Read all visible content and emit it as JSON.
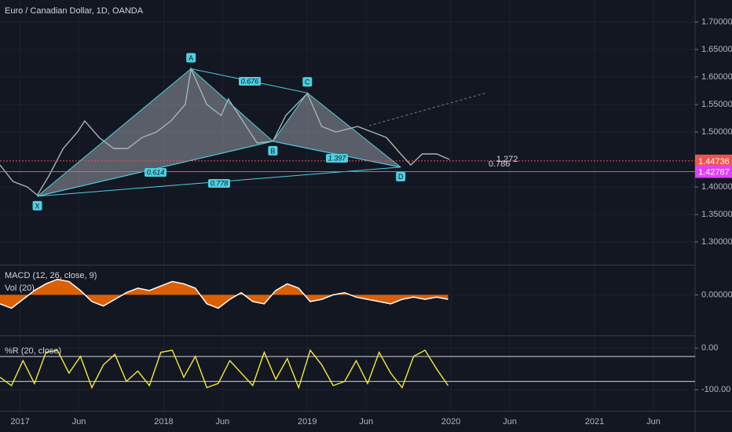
{
  "chart_data": [
    {
      "type": "line",
      "title": "Euro / Canadian Dollar, 1D, OANDA",
      "xlim": [
        2016.86,
        2021.7
      ],
      "ylim": [
        1.2586,
        1.74
      ],
      "xticks": [
        {
          "value": 2017,
          "label": "2017"
        },
        {
          "value": 2017.41,
          "label": "Jun"
        },
        {
          "value": 2018,
          "label": "2018"
        },
        {
          "value": 2018.41,
          "label": "Jun"
        },
        {
          "value": 2019,
          "label": "2019"
        },
        {
          "value": 2019.41,
          "label": "Jun"
        },
        {
          "value": 2020,
          "label": "2020"
        },
        {
          "value": 2020.41,
          "label": "Jun"
        },
        {
          "value": 2021,
          "label": "2021"
        },
        {
          "value": 2021.41,
          "label": "Jun"
        }
      ],
      "yticks": [
        {
          "value": 1.7,
          "label": "1.70000"
        },
        {
          "value": 1.65,
          "label": "1.65000"
        },
        {
          "value": 1.6,
          "label": "1.60000"
        },
        {
          "value": 1.55,
          "label": "1.55000"
        },
        {
          "value": 1.5,
          "label": "1.50000"
        },
        {
          "value": 1.4,
          "label": "1.40000"
        },
        {
          "value": 1.35,
          "label": "1.35000"
        },
        {
          "value": 1.3,
          "label": "1.30000"
        }
      ],
      "series": [
        {
          "name": "EURCAD",
          "color": "#9fb8b4",
          "x": [
            2016.86,
            2016.95,
            2017.05,
            2017.12,
            2017.2,
            2017.3,
            2017.4,
            2017.45,
            2017.55,
            2017.65,
            2017.75,
            2017.85,
            2017.95,
            2018.05,
            2018.15,
            2018.19,
            2018.3,
            2018.4,
            2018.45,
            2018.55,
            2018.65,
            2018.76,
            2018.85,
            2019.0,
            2019.1,
            2019.2,
            2019.35,
            2019.45,
            2019.55,
            2019.65,
            2019.72,
            2019.8,
            2019.9,
            2019.99
          ],
          "values": [
            1.44,
            1.41,
            1.4,
            1.385,
            1.42,
            1.47,
            1.5,
            1.52,
            1.49,
            1.47,
            1.47,
            1.49,
            1.5,
            1.52,
            1.55,
            1.615,
            1.55,
            1.53,
            1.56,
            1.52,
            1.48,
            1.483,
            1.53,
            1.57,
            1.51,
            1.5,
            1.51,
            1.5,
            1.49,
            1.46,
            1.44,
            1.46,
            1.46,
            1.45
          ]
        }
      ],
      "pattern": {
        "color": "#4dd0e1",
        "points": [
          {
            "label": "X",
            "x": 2017.12,
            "y": 1.383
          },
          {
            "label": "A",
            "x": 2018.19,
            "y": 1.615
          },
          {
            "label": "B",
            "x": 2018.76,
            "y": 1.483
          },
          {
            "label": "C",
            "x": 2019.0,
            "y": 1.571
          },
          {
            "label": "D",
            "x": 2019.65,
            "y": 1.436
          }
        ],
        "ratios": [
          0.614,
          0.676,
          1.397,
          0.778,
          1.272,
          0.786
        ]
      },
      "price_lines": [
        {
          "value": 1.44736,
          "color": "#ef5350"
        },
        {
          "value": 1.42787,
          "color": "#e040fb"
        }
      ]
    },
    {
      "type": "area",
      "title": "MACD (12, 26, close, 9)",
      "subtitle": "Vol (20)",
      "xlim": [
        2016.86,
        2021.7
      ],
      "ylim": [
        -0.035,
        0.025
      ],
      "yticks": [
        {
          "value": 0,
          "label": "0.00000"
        }
      ],
      "series": [
        {
          "name": "MACD",
          "color": "#ff6d00",
          "x": [
            2016.86,
            2016.94,
            2017.02,
            2017.1,
            2017.18,
            2017.26,
            2017.34,
            2017.42,
            2017.5,
            2017.58,
            2017.66,
            2017.74,
            2017.82,
            2017.9,
            2017.98,
            2018.06,
            2018.14,
            2018.22,
            2018.3,
            2018.38,
            2018.46,
            2018.54,
            2018.62,
            2018.7,
            2018.78,
            2018.86,
            2018.94,
            2019.02,
            2019.1,
            2019.18,
            2019.26,
            2019.34,
            2019.42,
            2019.5,
            2019.58,
            2019.66,
            2019.74,
            2019.82,
            2019.9,
            2019.98
          ],
          "values": [
            -0.008,
            -0.012,
            -0.004,
            0.004,
            0.01,
            0.014,
            0.012,
            0.004,
            -0.006,
            -0.01,
            -0.004,
            0.002,
            0.006,
            0.004,
            0.008,
            0.012,
            0.01,
            0.006,
            -0.008,
            -0.012,
            -0.004,
            0.002,
            -0.006,
            -0.008,
            0.004,
            0.01,
            0.006,
            -0.006,
            -0.004,
            0,
            0.002,
            -0.002,
            -0.004,
            -0.006,
            -0.008,
            -0.004,
            -0.002,
            -0.004,
            -0.002,
            -0.004
          ]
        }
      ]
    },
    {
      "type": "line",
      "title": "%R (20, close)",
      "xlim": [
        2016.86,
        2021.7
      ],
      "ylim": [
        -145,
        25
      ],
      "yticks": [
        {
          "value": 0,
          "label": "0.00"
        },
        {
          "value": -100,
          "label": "-100.00"
        }
      ],
      "bands": [
        -20,
        -80
      ],
      "series": [
        {
          "name": "%R",
          "color": "#f5e935",
          "x": [
            2016.86,
            2016.94,
            2017.02,
            2017.1,
            2017.18,
            2017.26,
            2017.34,
            2017.42,
            2017.5,
            2017.58,
            2017.66,
            2017.74,
            2017.82,
            2017.9,
            2017.98,
            2018.06,
            2018.14,
            2018.22,
            2018.3,
            2018.38,
            2018.46,
            2018.54,
            2018.62,
            2018.7,
            2018.78,
            2018.86,
            2018.94,
            2019.02,
            2019.1,
            2019.18,
            2019.26,
            2019.34,
            2019.42,
            2019.5,
            2019.58,
            2019.66,
            2019.74,
            2019.82,
            2019.9,
            2019.98
          ],
          "values": [
            -70,
            -90,
            -30,
            -85,
            -10,
            -5,
            -60,
            -20,
            -95,
            -40,
            -15,
            -80,
            -55,
            -90,
            -10,
            -5,
            -70,
            -20,
            -95,
            -85,
            -30,
            -60,
            -90,
            -10,
            -75,
            -25,
            -95,
            -5,
            -40,
            -90,
            -80,
            -30,
            -85,
            -10,
            -60,
            -95,
            -20,
            -5,
            -50,
            -90
          ]
        }
      ]
    }
  ]
}
